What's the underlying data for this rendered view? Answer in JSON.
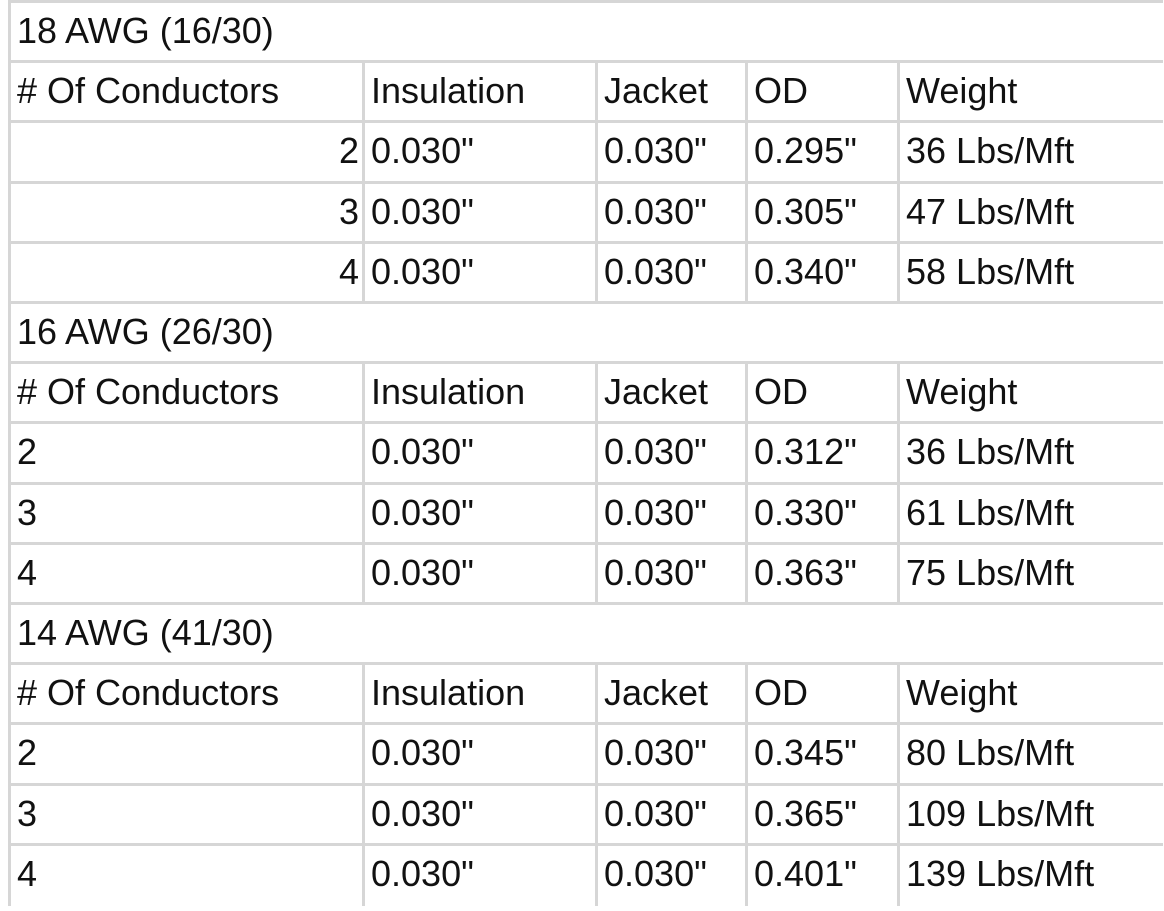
{
  "sections": [
    {
      "title": "18 AWG (16/30)",
      "header": [
        "# Of Conductors",
        "Insulation",
        "Jacket",
        "OD",
        "Weight"
      ],
      "rows": [
        [
          "2",
          "0.030\"",
          "0.030\"",
          "0.295\"",
          "36 Lbs/Mft"
        ],
        [
          "3",
          "0.030\"",
          "0.030\"",
          "0.305\"",
          "47 Lbs/Mft"
        ],
        [
          "4",
          "0.030\"",
          "0.030\"",
          "0.340\"",
          "58 Lbs/Mft"
        ]
      ]
    },
    {
      "title": "16 AWG (26/30)",
      "header": [
        "# Of Conductors",
        "Insulation",
        "Jacket",
        "OD",
        "Weight"
      ],
      "rows": [
        [
          "2",
          "0.030\"",
          "0.030\"",
          "0.312\"",
          "36 Lbs/Mft"
        ],
        [
          "3",
          "0.030\"",
          "0.030\"",
          "0.330\"",
          "61 Lbs/Mft"
        ],
        [
          "4",
          "0.030\"",
          "0.030\"",
          "0.363\"",
          "75 Lbs/Mft"
        ]
      ]
    },
    {
      "title": "14 AWG (41/30)",
      "header": [
        "# Of Conductors",
        "Insulation",
        "Jacket",
        "OD",
        "Weight"
      ],
      "rows": [
        [
          "2",
          "0.030\"",
          "0.030\"",
          "0.345\"",
          "80 Lbs/Mft"
        ],
        [
          "3",
          "0.030\"",
          "0.030\"",
          "0.365\"",
          "109 Lbs/Mft"
        ],
        [
          "4",
          "0.030\"",
          "0.030\"",
          "0.401\"",
          "139 Lbs/Mft"
        ]
      ]
    }
  ]
}
